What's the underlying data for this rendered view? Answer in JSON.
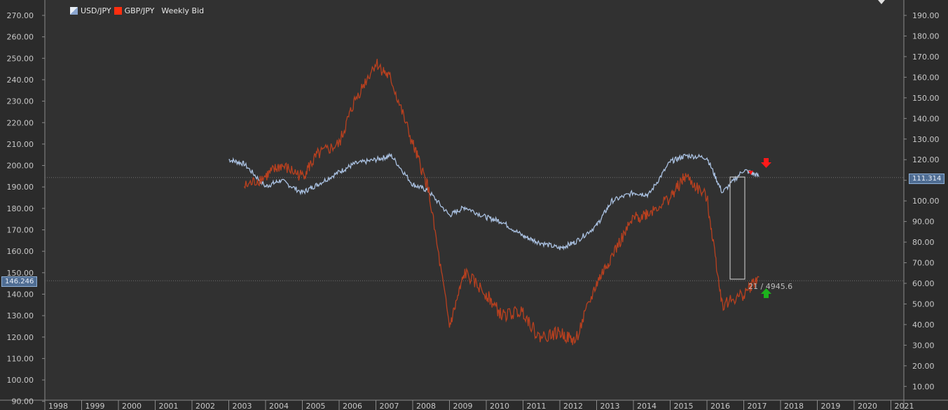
{
  "chart_data": {
    "type": "line",
    "legend": {
      "placement": "top-left",
      "suffix": "Weekly Bid"
    },
    "grid": false,
    "x_ticks": [
      "1998",
      "1999",
      "2000",
      "2001",
      "2002",
      "2003",
      "2004",
      "2005",
      "2006",
      "2007",
      "2008",
      "2009",
      "2010",
      "2011",
      "2012",
      "2013",
      "2014",
      "2015",
      "2016",
      "2017",
      "2018",
      "2019",
      "2020",
      "2021"
    ],
    "left_axis": {
      "ylim": [
        90,
        275
      ],
      "ticks": [
        "90.00",
        "100.00",
        "110.00",
        "120.00",
        "130.00",
        "140.00",
        "150.00",
        "160.00",
        "170.00",
        "180.00",
        "190.00",
        "200.00",
        "210.00",
        "220.00",
        "230.00",
        "240.00",
        "250.00",
        "260.00",
        "270.00"
      ]
    },
    "right_axis": {
      "ylim": [
        5,
        195
      ],
      "ticks": [
        "10.00",
        "20.00",
        "30.00",
        "40.00",
        "50.00",
        "60.00",
        "70.00",
        "80.00",
        "90.00",
        "100.00",
        "110.00",
        "120.00",
        "130.00",
        "140.00",
        "150.00",
        "160.00",
        "170.00",
        "180.00",
        "190.00"
      ]
    },
    "series": [
      {
        "name": "USD/JPY",
        "axis": "right",
        "color": "#a9c0e0",
        "x": [
          "2003-01",
          "2003-06",
          "2004-01",
          "2004-06",
          "2005-01",
          "2005-06",
          "2006-01",
          "2006-06",
          "2007-01",
          "2007-06",
          "2008-01",
          "2008-06",
          "2009-01",
          "2009-06",
          "2010-01",
          "2010-06",
          "2011-01",
          "2011-06",
          "2012-01",
          "2012-06",
          "2013-01",
          "2013-06",
          "2014-01",
          "2014-06",
          "2015-01",
          "2015-06",
          "2016-01",
          "2016-06",
          "2017-01",
          "2017-06"
        ],
        "y": [
          120,
          118,
          107,
          110,
          104,
          108,
          114,
          118,
          120,
          122,
          108,
          105,
          93,
          97,
          92,
          90,
          83,
          80,
          77,
          80,
          88,
          100,
          104,
          103,
          119,
          122,
          121,
          104,
          115,
          112
        ]
      },
      {
        "name": "GBP/JPY",
        "axis": "left",
        "color": "#b8401f",
        "x": [
          "2003-06",
          "2004-01",
          "2004-06",
          "2005-01",
          "2005-06",
          "2006-01",
          "2006-06",
          "2007-01",
          "2007-06",
          "2008-01",
          "2008-06",
          "2009-01",
          "2009-06",
          "2010-01",
          "2010-06",
          "2011-01",
          "2011-06",
          "2012-01",
          "2012-06",
          "2013-01",
          "2013-06",
          "2014-01",
          "2014-06",
          "2015-01",
          "2015-06",
          "2016-01",
          "2016-06",
          "2017-01",
          "2017-06"
        ],
        "y": [
          190,
          195,
          200,
          195,
          205,
          210,
          230,
          248,
          240,
          210,
          190,
          125,
          150,
          140,
          130,
          132,
          120,
          122,
          118,
          145,
          158,
          175,
          178,
          185,
          195,
          185,
          135,
          140,
          148
        ]
      }
    ],
    "annotations": {
      "right_price": "111.314",
      "left_price": "146.246",
      "measure": "21 / 4945.6"
    }
  }
}
